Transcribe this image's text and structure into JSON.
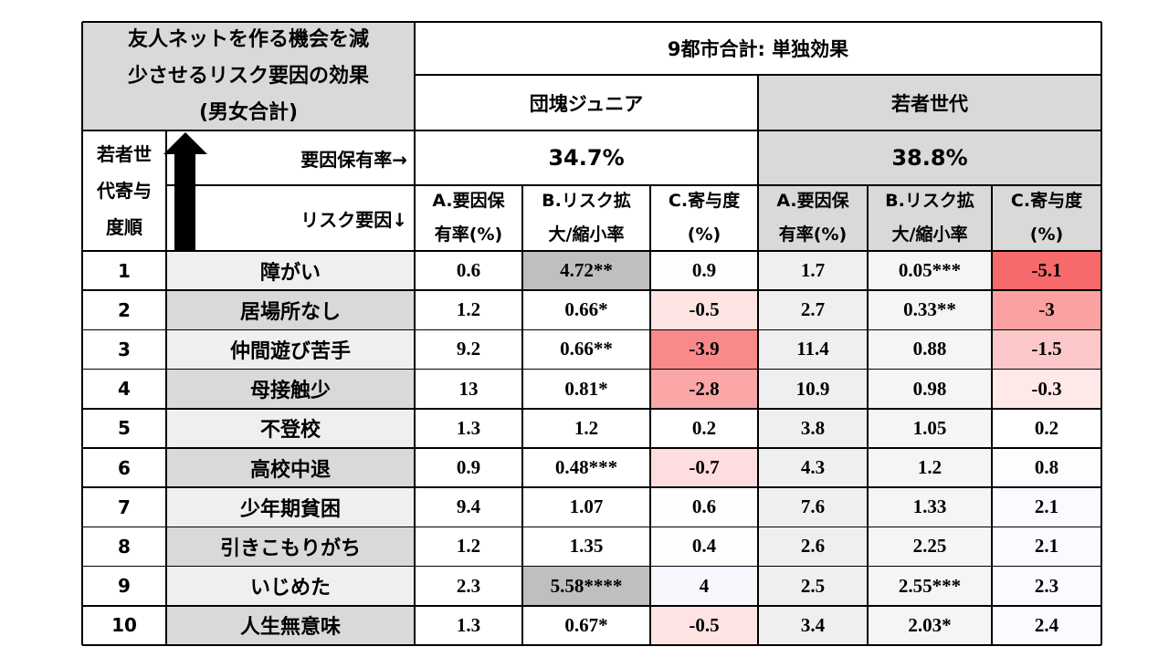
{
  "header": {
    "title_lines": [
      "友人ネットを作る機会を減",
      "少させるリスク要因の効果",
      "(男女合計)"
    ],
    "overall": "9都市合計: 単独効果",
    "group1": "団塊ジュニア",
    "group2": "若者世代",
    "rank_label": [
      "若者世",
      "代寄与",
      "度順"
    ],
    "rate_label": "要因保有率→",
    "risk_label": "リスク要因↓",
    "group1_rate": "34.7%",
    "group2_rate": "38.8%",
    "col_a": [
      "A.要因保",
      "有率(%)"
    ],
    "col_b": [
      "B.リスク拡",
      "大/縮小率"
    ],
    "col_c": [
      "C.寄与度",
      "(%)"
    ]
  },
  "rows": [
    {
      "rank": "1",
      "factor": "障がい",
      "a1": "0.6",
      "b1": "4.72**",
      "c1": "0.9",
      "a2": "1.7",
      "b2": "0.05***",
      "c2": "-5.1"
    },
    {
      "rank": "2",
      "factor": "居場所なし",
      "a1": "1.2",
      "b1": "0.66*",
      "c1": "-0.5",
      "a2": "2.7",
      "b2": "0.33**",
      "c2": "-3"
    },
    {
      "rank": "3",
      "factor": "仲間遊び苦手",
      "a1": "9.2",
      "b1": "0.66**",
      "c1": "-3.9",
      "a2": "11.4",
      "b2": "0.88",
      "c2": "-1.5"
    },
    {
      "rank": "4",
      "factor": "母接触少",
      "a1": "13",
      "b1": "0.81*",
      "c1": "-2.8",
      "a2": "10.9",
      "b2": "0.98",
      "c2": "-0.3"
    },
    {
      "rank": "5",
      "factor": "不登校",
      "a1": "1.3",
      "b1": "1.2",
      "c1": "0.2",
      "a2": "3.8",
      "b2": "1.05",
      "c2": "0.2"
    },
    {
      "rank": "6",
      "factor": "高校中退",
      "a1": "0.9",
      "b1": "0.48***",
      "c1": "-0.7",
      "a2": "4.3",
      "b2": "1.2",
      "c2": "0.8"
    },
    {
      "rank": "7",
      "factor": "少年期貧困",
      "a1": "9.4",
      "b1": "1.07",
      "c1": "0.6",
      "a2": "7.6",
      "b2": "1.33",
      "c2": "2.1"
    },
    {
      "rank": "8",
      "factor": "引きこもりがち",
      "a1": "1.2",
      "b1": "1.35",
      "c1": "0.4",
      "a2": "2.6",
      "b2": "2.25",
      "c2": "2.1"
    },
    {
      "rank": "9",
      "factor": "いじめた",
      "a1": "2.3",
      "b1": "5.58****",
      "c1": "4",
      "a2": "2.5",
      "b2": "2.55***",
      "c2": "2.3"
    },
    {
      "rank": "10",
      "factor": "人生無意味",
      "a1": "1.3",
      "b1": "0.67*",
      "c1": "-0.5",
      "a2": "3.4",
      "b2": "2.03*",
      "c2": "2.4"
    }
  ],
  "colors": {
    "header_gray": "#d9d9d9",
    "factor_light": "#efefef",
    "factor_dark": "#d9d9d9",
    "b_highlight": "#bfbfbf",
    "heat_strong_neg": "#f8696b"
  }
}
